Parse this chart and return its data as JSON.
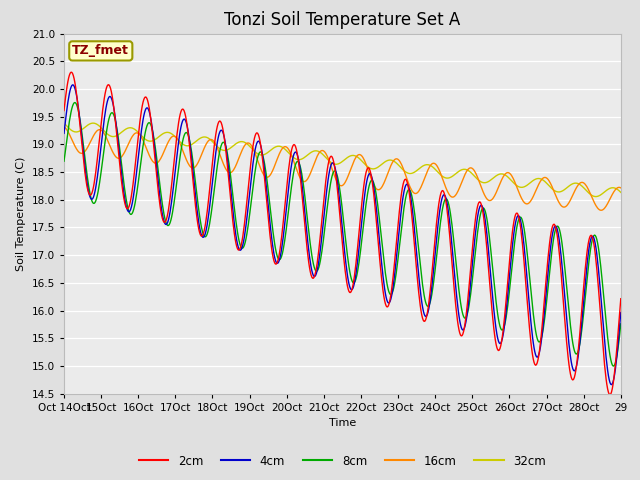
{
  "title": "Tonzi Soil Temperature Set A",
  "xlabel": "Time",
  "ylabel": "Soil Temperature (C)",
  "ylim": [
    14.5,
    21.0
  ],
  "annotation": "TZ_fmet",
  "annotation_color": "#8b0000",
  "annotation_bg": "#ffffcc",
  "annotation_edge": "#999900",
  "line_colors": {
    "2cm": "#ff0000",
    "4cm": "#0000cc",
    "8cm": "#00aa00",
    "16cm": "#ff8800",
    "32cm": "#cccc00"
  },
  "bg_color": "#e0e0e0",
  "plot_bg": "#ebebeb",
  "grid_color": "#ffffff",
  "title_fontsize": 12,
  "axis_label_fontsize": 8,
  "tick_fontsize": 7.5,
  "legend_fontsize": 8.5,
  "num_days": 15
}
